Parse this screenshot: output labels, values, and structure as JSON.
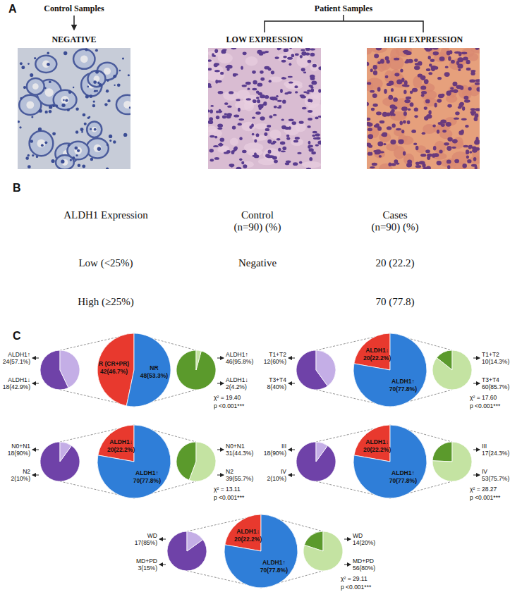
{
  "panel_labels": [
    "A",
    "B",
    "C"
  ],
  "panel_a": {
    "groups": [
      {
        "title": "Control Samples",
        "images": [
          "NEGATIVE"
        ]
      },
      {
        "title": "Patient Samples",
        "images": [
          "LOW EXPRESSION",
          "HIGH EXPRESSION"
        ]
      }
    ]
  },
  "panel_b": {
    "header": [
      [
        "ALDH1 Expression"
      ],
      [
        "Control",
        "(n=90) (%)"
      ],
      [
        "Cases",
        "(n=90) (%)"
      ]
    ],
    "rows": [
      [
        "Low (<25%)",
        "Negative",
        "20 (22.2)"
      ],
      [
        "High (≥25%)",
        null,
        "70 (77.8)"
      ]
    ]
  },
  "chart_data": [
    {
      "type": "pie",
      "categories": [
        "R (CR+PR)",
        "NR"
      ],
      "values": [
        46.7,
        53.3
      ],
      "value_labels": [
        "42(46.7%)",
        "48(53.3%)"
      ],
      "colors": [
        "#e8392e",
        "#2f7ed8"
      ],
      "data_labels": true,
      "annotations": [
        "χ² = 19.40",
        "p <0.001***"
      ]
    },
    {
      "type": "pie",
      "categories": [
        "ALDH1↑",
        "ALDH1↓"
      ],
      "values": [
        57.1,
        42.9
      ],
      "value_labels": [
        "24(57.1%)",
        "18(42.9%)"
      ],
      "colors": [
        "#6f42a8",
        "#c4aee6"
      ],
      "data_labels": true
    },
    {
      "type": "pie",
      "categories": [
        "ALDH1↑",
        "ALDH1↓"
      ],
      "values": [
        95.8,
        4.2
      ],
      "value_labels": [
        "46(95.8%)",
        "2(4.2%)"
      ],
      "colors": [
        "#5b9a2c",
        "#c4e3a2"
      ],
      "data_labels": true
    },
    {
      "type": "pie",
      "categories": [
        "ALDH1↓",
        "ALDH1↑"
      ],
      "values": [
        22.2,
        77.8
      ],
      "value_labels": [
        "20(22.2%)",
        "70(77.8%)"
      ],
      "colors": [
        "#e8392e",
        "#2f7ed8"
      ],
      "data_labels": true,
      "annotations": [
        "χ² = 17.60",
        "p <0.001***"
      ]
    },
    {
      "type": "pie",
      "categories": [
        "T1+T2",
        "T3+T4"
      ],
      "values": [
        60,
        40
      ],
      "value_labels": [
        "12(60%)",
        "8(40%)"
      ],
      "colors": [
        "#6f42a8",
        "#c4aee6"
      ],
      "data_labels": true
    },
    {
      "type": "pie",
      "categories": [
        "T1+T2",
        "T3+T4"
      ],
      "values": [
        14.3,
        85.7
      ],
      "value_labels": [
        "10(14.3%)",
        "60(85.7%)"
      ],
      "colors": [
        "#5b9a2c",
        "#c4e3a2"
      ],
      "data_labels": true
    },
    {
      "type": "pie",
      "categories": [
        "ALDH1↓",
        "ALDH1↑"
      ],
      "values": [
        22.2,
        77.8
      ],
      "value_labels": [
        "20(22.2%)",
        "70(77.8%)"
      ],
      "colors": [
        "#e8392e",
        "#2f7ed8"
      ],
      "data_labels": true,
      "annotations": [
        "χ² = 13.11",
        "p <0.001***"
      ]
    },
    {
      "type": "pie",
      "categories": [
        "N0+N1",
        "N2"
      ],
      "values": [
        90,
        10
      ],
      "value_labels": [
        "18(90%)",
        "2(10%)"
      ],
      "colors": [
        "#6f42a8",
        "#c4aee6"
      ],
      "data_labels": true
    },
    {
      "type": "pie",
      "categories": [
        "N0+N1",
        "N2"
      ],
      "values": [
        44.3,
        55.7
      ],
      "value_labels": [
        "31(44.3%)",
        "39(55.7%)"
      ],
      "colors": [
        "#5b9a2c",
        "#c4e3a2"
      ],
      "data_labels": true
    },
    {
      "type": "pie",
      "categories": [
        "ALDH1↓",
        "ALDH1↑"
      ],
      "values": [
        22.2,
        77.8
      ],
      "value_labels": [
        "20(22.2%)",
        "70(77.8%)"
      ],
      "colors": [
        "#e8392e",
        "#2f7ed8"
      ],
      "data_labels": true,
      "annotations": [
        "χ² = 28.27",
        "p <0.001***"
      ]
    },
    {
      "type": "pie",
      "categories": [
        "III",
        "IV"
      ],
      "values": [
        90,
        10
      ],
      "value_labels": [
        "18(90%)",
        "2(10%)"
      ],
      "colors": [
        "#6f42a8",
        "#c4aee6"
      ],
      "data_labels": true
    },
    {
      "type": "pie",
      "categories": [
        "III",
        "IV"
      ],
      "values": [
        24.3,
        75.7
      ],
      "value_labels": [
        "17(24.3%)",
        "53(75.7%)"
      ],
      "colors": [
        "#5b9a2c",
        "#c4e3a2"
      ],
      "data_labels": true
    },
    {
      "type": "pie",
      "categories": [
        "ALDH1↓",
        "ALDH1↑"
      ],
      "values": [
        22.2,
        77.8
      ],
      "value_labels": [
        "20(22.2%)",
        "70(77.8%)"
      ],
      "colors": [
        "#e8392e",
        "#2f7ed8"
      ],
      "data_labels": true,
      "annotations": [
        "χ² = 29.11",
        "p <0.001***"
      ]
    },
    {
      "type": "pie",
      "categories": [
        "WD",
        "MD+PD"
      ],
      "values": [
        85,
        15
      ],
      "value_labels": [
        "17(85%)",
        "3(15%)"
      ],
      "colors": [
        "#6f42a8",
        "#c4aee6"
      ],
      "data_labels": true
    },
    {
      "type": "pie",
      "categories": [
        "WD",
        "MD+PD"
      ],
      "values": [
        20,
        80
      ],
      "value_labels": [
        "14(20%)",
        "56(80%)"
      ],
      "colors": [
        "#5b9a2c",
        "#c4e3a2"
      ],
      "data_labels": true
    }
  ]
}
